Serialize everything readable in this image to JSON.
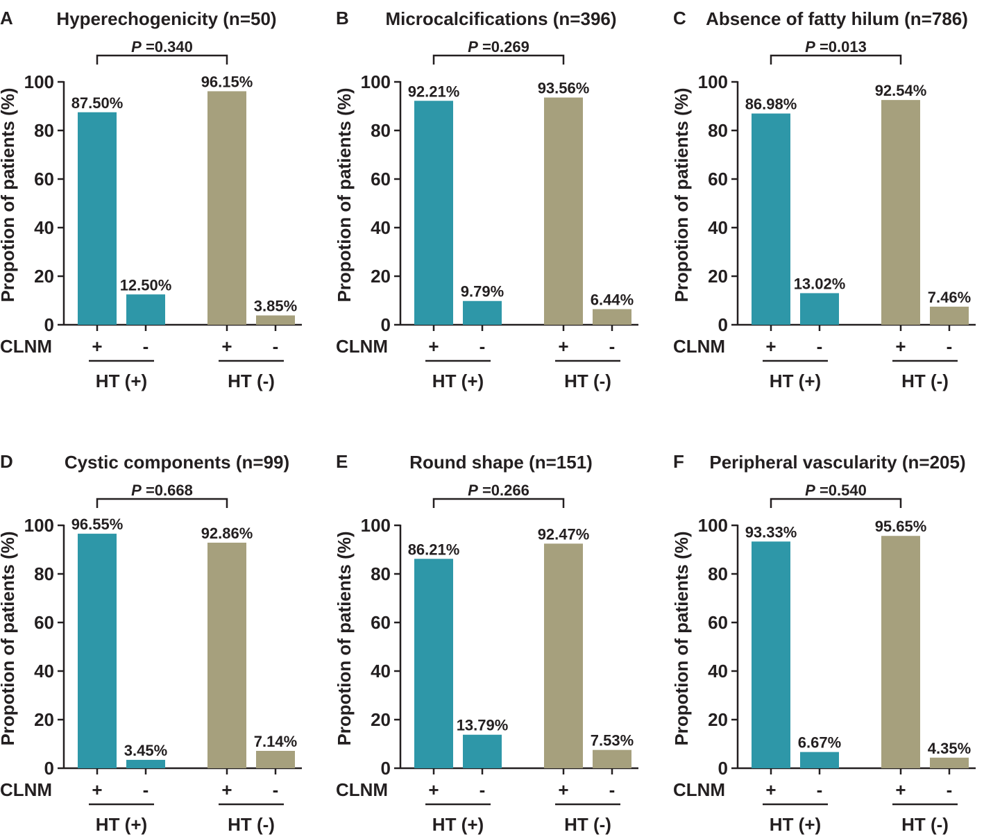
{
  "colors": {
    "ht_pos": "#2e97a8",
    "ht_neg": "#a6a07d",
    "ink": "#231f20"
  },
  "chart_data": [
    {
      "type": "bar",
      "panel": "A",
      "title": "Hyperechogenicity (n=50)",
      "ylabel": "Propotion of patients (%)",
      "ylim": [
        0,
        100
      ],
      "yticks": [
        "0",
        "20",
        "40",
        "60",
        "80",
        "100"
      ],
      "row_label": "CLNM",
      "signs": [
        "+",
        "-",
        "+",
        "-"
      ],
      "groups": [
        "HT (+)",
        "HT (-)"
      ],
      "values": [
        87.5,
        12.5,
        96.15,
        3.85
      ],
      "labels": [
        "87.50%",
        "12.50%",
        "96.15%",
        "3.85%"
      ],
      "p_prefix": "P",
      "p_value": " =0.340"
    },
    {
      "type": "bar",
      "panel": "B",
      "title": "Microcalcifications (n=396)",
      "ylabel": "Propotion of patients (%)",
      "ylim": [
        0,
        100
      ],
      "yticks": [
        "0",
        "20",
        "40",
        "60",
        "80",
        "100"
      ],
      "row_label": "CLNM",
      "signs": [
        "+",
        "-",
        "+",
        "-"
      ],
      "groups": [
        "HT (+)",
        "HT (-)"
      ],
      "values": [
        92.21,
        9.79,
        93.56,
        6.44
      ],
      "labels": [
        "92.21%",
        "9.79%",
        "93.56%",
        "6.44%"
      ],
      "p_prefix": "P",
      "p_value": " =0.269"
    },
    {
      "type": "bar",
      "panel": "C",
      "title": "Absence of fatty hilum (n=786)",
      "ylabel": "Propotion of patients (%)",
      "ylim": [
        0,
        100
      ],
      "yticks": [
        "0",
        "20",
        "40",
        "60",
        "80",
        "100"
      ],
      "row_label": "CLNM",
      "signs": [
        "+",
        "-",
        "+",
        "-"
      ],
      "groups": [
        "HT (+)",
        "HT (-)"
      ],
      "values": [
        86.98,
        13.02,
        92.54,
        7.46
      ],
      "labels": [
        "86.98%",
        "13.02%",
        "92.54%",
        "7.46%"
      ],
      "p_prefix": "P",
      "p_value": " =0.013"
    },
    {
      "type": "bar",
      "panel": "D",
      "title": "Cystic components (n=99)",
      "ylabel": "Propotion of patients (%)",
      "ylim": [
        0,
        100
      ],
      "yticks": [
        "0",
        "20",
        "40",
        "60",
        "80",
        "100"
      ],
      "row_label": "CLNM",
      "signs": [
        "+",
        "-",
        "+",
        "-"
      ],
      "groups": [
        "HT (+)",
        "HT (-)"
      ],
      "values": [
        96.55,
        3.45,
        92.86,
        7.14
      ],
      "labels": [
        "96.55%",
        "3.45%",
        "92.86%",
        "7.14%"
      ],
      "p_prefix": "P",
      "p_value": " =0.668"
    },
    {
      "type": "bar",
      "panel": "E",
      "title": "Round shape (n=151)",
      "ylabel": "Propotion of patients (%)",
      "ylim": [
        0,
        100
      ],
      "yticks": [
        "0",
        "20",
        "40",
        "60",
        "80",
        "100"
      ],
      "row_label": "CLNM",
      "signs": [
        "+",
        "-",
        "+",
        "-"
      ],
      "groups": [
        "HT (+)",
        "HT (-)"
      ],
      "values": [
        86.21,
        13.79,
        92.47,
        7.53
      ],
      "labels": [
        "86.21%",
        "13.79%",
        "92.47%",
        "7.53%"
      ],
      "p_prefix": "P",
      "p_value": " =0.266"
    },
    {
      "type": "bar",
      "panel": "F",
      "title": "Peripheral vascularity (n=205)",
      "ylabel": "Propotion of patients (%)",
      "ylim": [
        0,
        100
      ],
      "yticks": [
        "0",
        "20",
        "40",
        "60",
        "80",
        "100"
      ],
      "row_label": "CLNM",
      "signs": [
        "+",
        "-",
        "+",
        "-"
      ],
      "groups": [
        "HT (+)",
        "HT (-)"
      ],
      "values": [
        93.33,
        6.67,
        95.65,
        4.35
      ],
      "labels": [
        "93.33%",
        "6.67%",
        "95.65%",
        "4.35%"
      ],
      "p_prefix": "P",
      "p_value": " =0.540"
    }
  ]
}
